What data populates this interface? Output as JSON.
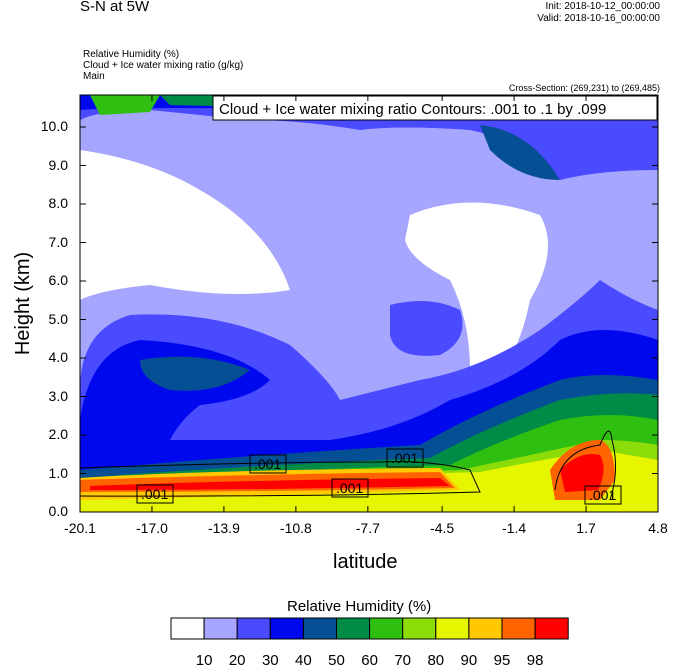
{
  "header": {
    "title": "S-N at 5W",
    "init": "Init: 2018-10-12_00:00:00",
    "valid": "Valid: 2018-10-16_00:00:00",
    "fields": [
      "Relative Humidity   (%)",
      "Cloud + Ice water mixing ratio   (g/kg)",
      "Main"
    ],
    "cross_section": "Cross-Section: (269,231) to (269,485)"
  },
  "chart_data": {
    "type": "contour",
    "title": "Cloud + Ice water mixing ratio Contours: .001 to .1 by .099",
    "xlabel": "latitude",
    "ylabel": "Height (km)",
    "xticks": [
      "-20.1",
      "-17.0",
      "-13.9",
      "-10.8",
      "-7.7",
      "-4.5",
      "-1.4",
      "1.7",
      "4.8"
    ],
    "yticks": [
      "0.0",
      "1.0",
      "2.0",
      "3.0",
      "4.0",
      "5.0",
      "6.0",
      "7.0",
      "8.0",
      "9.0",
      "10.0"
    ],
    "xlim": [
      -20.1,
      4.8
    ],
    "ylim": [
      0,
      10.8
    ],
    "contour_labels": [
      ".001",
      ".001",
      ".001",
      ".001",
      ".001"
    ],
    "colorbar": {
      "title": "Relative Humidity  (%)",
      "levels": [
        "10",
        "20",
        "30",
        "40",
        "50",
        "60",
        "70",
        "80",
        "90",
        "95",
        "98"
      ],
      "colors": [
        "#ffffff",
        "#a6a6ff",
        "#4a4aff",
        "#0008ee",
        "#054f94",
        "#008c46",
        "#2fbf10",
        "#8cdc0a",
        "#e6f500",
        "#ffc800",
        "#ff6400",
        "#ff0000"
      ]
    }
  }
}
